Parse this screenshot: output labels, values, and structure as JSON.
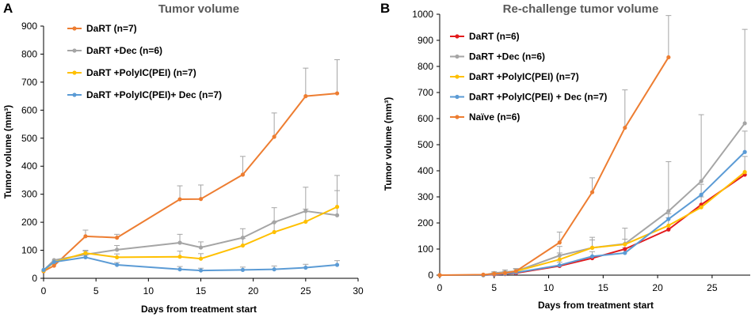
{
  "chart_data": [
    {
      "panel": "A",
      "type": "line",
      "title": "Tumor volume",
      "xlabel": "Days from treatment start",
      "ylabel": "Tumor volume (mm³)",
      "xlim": [
        0,
        30
      ],
      "ylim": [
        0,
        900
      ],
      "xticks": [
        0,
        5,
        10,
        15,
        20,
        25,
        30
      ],
      "yticks": [
        0,
        100,
        200,
        300,
        400,
        500,
        600,
        700,
        800,
        900
      ],
      "legend_position": "top-left",
      "series": [
        {
          "name": "DaRT (n=7)",
          "color": "#ED7D31",
          "x": [
            0,
            1,
            4,
            7,
            13,
            15,
            19,
            22,
            25,
            28
          ],
          "y": [
            25,
            45,
            150,
            145,
            282,
            283,
            370,
            505,
            650,
            660
          ],
          "err": [
            0,
            0,
            22,
            12,
            48,
            50,
            65,
            85,
            100,
            120
          ]
        },
        {
          "name": "DaRT +Dec (n=6)",
          "color": "#A5A5A5",
          "x": [
            0,
            1,
            4,
            7,
            13,
            15,
            19,
            22,
            25,
            28
          ],
          "y": [
            28,
            65,
            85,
            102,
            127,
            110,
            145,
            200,
            240,
            225
          ],
          "err": [
            0,
            0,
            12,
            15,
            30,
            20,
            32,
            52,
            85,
            88
          ]
        },
        {
          "name": "DaRT +PolyIC(PEI) (n=7)",
          "color": "#FFC000",
          "x": [
            0,
            1,
            4,
            7,
            13,
            15,
            19,
            22,
            25,
            28
          ],
          "y": [
            27,
            58,
            90,
            75,
            77,
            70,
            117,
            165,
            202,
            255
          ],
          "err": [
            0,
            0,
            10,
            12,
            20,
            18,
            25,
            35,
            45,
            112
          ]
        },
        {
          "name": "DaRT +PolyIC(PEI)+ Dec (n=7)",
          "color": "#5B9BD5",
          "x": [
            0,
            1,
            4,
            7,
            13,
            15,
            19,
            22,
            25,
            28
          ],
          "y": [
            30,
            58,
            75,
            48,
            32,
            28,
            30,
            32,
            38,
            48
          ],
          "err": [
            0,
            0,
            8,
            8,
            10,
            8,
            10,
            12,
            12,
            15
          ]
        }
      ]
    },
    {
      "panel": "B",
      "type": "line",
      "title": "Re-challenge tumor volume",
      "xlabel": "Days from treatment start",
      "ylabel": "Tumor volume (mm³)",
      "xlim": [
        0,
        28.5
      ],
      "ylim": [
        0,
        1000
      ],
      "xticks": [
        0,
        5,
        10,
        15,
        20,
        25
      ],
      "yticks": [
        0,
        100,
        200,
        300,
        400,
        500,
        600,
        700,
        800,
        900,
        1000
      ],
      "legend_position": "top-left",
      "series": [
        {
          "name": "DaRT (n=6)",
          "color": "#E31A1C",
          "x": [
            0,
            4,
            5,
            6,
            7,
            11,
            14,
            17,
            21,
            24,
            28
          ],
          "y": [
            0,
            0,
            2,
            4,
            8,
            35,
            65,
            100,
            175,
            270,
            385
          ],
          "err": [
            0,
            0,
            0,
            0,
            0,
            0,
            0,
            0,
            0,
            0,
            0
          ]
        },
        {
          "name": "DaRT +Dec (n=6)",
          "color": "#A5A5A5",
          "x": [
            0,
            4,
            5,
            6,
            7,
            11,
            14,
            17,
            21,
            24,
            28
          ],
          "y": [
            0,
            0,
            8,
            12,
            15,
            75,
            105,
            120,
            245,
            360,
            582
          ],
          "err": [
            0,
            0,
            5,
            8,
            10,
            35,
            40,
            60,
            190,
            255,
            360
          ]
        },
        {
          "name": "DaRT +PolyIC(PEI) (n=7)",
          "color": "#FFC000",
          "x": [
            0,
            4,
            5,
            6,
            7,
            11,
            14,
            17,
            21,
            24,
            28
          ],
          "y": [
            0,
            0,
            5,
            8,
            15,
            60,
            105,
            118,
            190,
            260,
            395
          ],
          "err": [
            0,
            0,
            3,
            6,
            8,
            25,
            30,
            20,
            30,
            40,
            60
          ]
        },
        {
          "name": "DaRT +PolyIC(PEI) + Dec (n=7)",
          "color": "#5B9BD5",
          "x": [
            0,
            4,
            5,
            6,
            7,
            11,
            14,
            17,
            21,
            24,
            28
          ],
          "y": [
            0,
            0,
            3,
            5,
            10,
            38,
            72,
            85,
            215,
            308,
            472
          ],
          "err": [
            0,
            0,
            3,
            4,
            6,
            12,
            18,
            20,
            20,
            40,
            80
          ]
        },
        {
          "name": "Naïve (n=6)",
          "color": "#ED7D31",
          "x": [
            0,
            4,
            5,
            6,
            7,
            11,
            14,
            17,
            21
          ],
          "y": [
            0,
            2,
            5,
            8,
            15,
            125,
            318,
            565,
            835
          ],
          "err": [
            0,
            0,
            4,
            6,
            10,
            40,
            55,
            145,
            160
          ]
        }
      ]
    }
  ]
}
